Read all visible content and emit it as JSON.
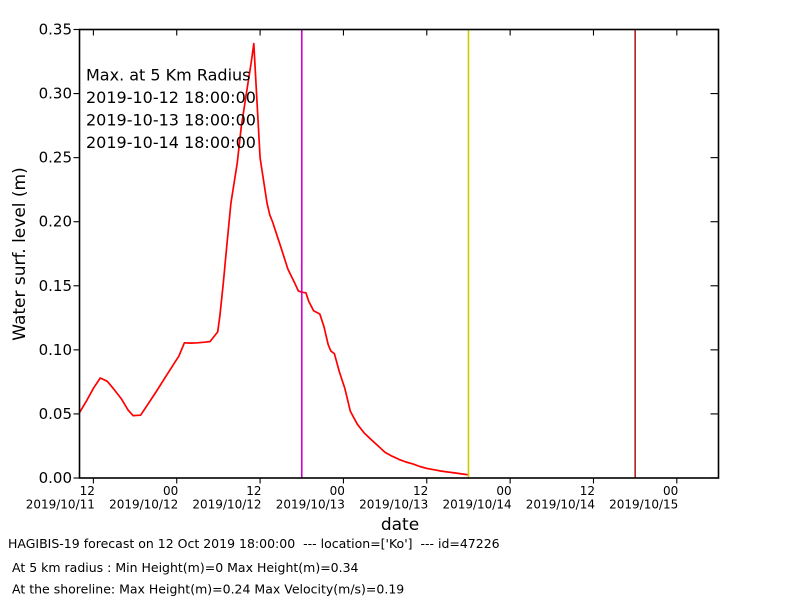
{
  "chart_data": {
    "type": "line",
    "title": "",
    "xlabel": "date",
    "ylabel": "Water surf. level (m)",
    "grid": false,
    "x_axis": {
      "unit": "hours since 2019-10-11 10:00",
      "range_hours": [
        0,
        92
      ],
      "ticks": [
        {
          "hours": 2,
          "time": "12",
          "date": "2019/10/11"
        },
        {
          "hours": 14,
          "time": "00",
          "date": "2019/10/12"
        },
        {
          "hours": 26,
          "time": "12",
          "date": "2019/10/12"
        },
        {
          "hours": 38,
          "time": "00",
          "date": "2019/10/13"
        },
        {
          "hours": 50,
          "time": "12",
          "date": "2019/10/13"
        },
        {
          "hours": 62,
          "time": "00",
          "date": "2019/10/14"
        },
        {
          "hours": 74,
          "time": "12",
          "date": "2019/10/14"
        },
        {
          "hours": 86,
          "time": "00",
          "date": "2019/10/15"
        }
      ]
    },
    "y_axis": {
      "range": [
        0,
        0.35
      ],
      "ticks": [
        0,
        0.05,
        0.1,
        0.15,
        0.2,
        0.25,
        0.3,
        0.35
      ],
      "decimals": 2
    },
    "series": [
      {
        "name": "water surface level, max at 5 km radius",
        "color": "#ff0000",
        "points": [
          [
            0,
            0.051
          ],
          [
            1,
            0.06
          ],
          [
            2,
            0.07
          ],
          [
            3,
            0.078
          ],
          [
            4,
            0.0755
          ],
          [
            5,
            0.069
          ],
          [
            6,
            0.062
          ],
          [
            7,
            0.053
          ],
          [
            7.7,
            0.0487
          ],
          [
            8.8,
            0.049
          ],
          [
            9.6,
            0.0556
          ],
          [
            11,
            0.067
          ],
          [
            12.4,
            0.079
          ],
          [
            13.8,
            0.091
          ],
          [
            14.3,
            0.095
          ],
          [
            15.1,
            0.1055
          ],
          [
            16,
            0.1053
          ],
          [
            17,
            0.1055
          ],
          [
            18,
            0.106
          ],
          [
            18.8,
            0.1065
          ],
          [
            19.9,
            0.114
          ],
          [
            20.2,
            0.126
          ],
          [
            20.7,
            0.152
          ],
          [
            21.2,
            0.1805
          ],
          [
            21.8,
            0.2144
          ],
          [
            22.7,
            0.2456
          ],
          [
            23.3,
            0.2742
          ],
          [
            24.1,
            0.3028
          ],
          [
            24.7,
            0.3236
          ],
          [
            25.1,
            0.339
          ],
          [
            26,
            0.2497
          ],
          [
            27,
            0.2146
          ],
          [
            27.4,
            0.2053
          ],
          [
            27.8,
            0.1998
          ],
          [
            29,
            0.18
          ],
          [
            30,
            0.163
          ],
          [
            31,
            0.152
          ],
          [
            31.5,
            0.146
          ],
          [
            32,
            0.145
          ],
          [
            32.6,
            0.1445
          ],
          [
            33,
            0.138
          ],
          [
            33.7,
            0.1305
          ],
          [
            34.6,
            0.128
          ],
          [
            35.2,
            0.118
          ],
          [
            35.8,
            0.104
          ],
          [
            36.2,
            0.099
          ],
          [
            36.7,
            0.097
          ],
          [
            37.4,
            0.083
          ],
          [
            38.2,
            0.07
          ],
          [
            39,
            0.052
          ],
          [
            40,
            0.042
          ],
          [
            41,
            0.035
          ],
          [
            42,
            0.03
          ],
          [
            43,
            0.025
          ],
          [
            44,
            0.02
          ],
          [
            45,
            0.017
          ],
          [
            46,
            0.0145
          ],
          [
            47,
            0.0125
          ],
          [
            48,
            0.011
          ],
          [
            49,
            0.009
          ],
          [
            50,
            0.0075
          ],
          [
            51,
            0.0065
          ],
          [
            52,
            0.0055
          ],
          [
            53,
            0.0047
          ],
          [
            54,
            0.004
          ],
          [
            55,
            0.0032
          ],
          [
            56,
            0.0025
          ]
        ]
      }
    ],
    "vlines": [
      {
        "hours": 32,
        "color": "#cc00cc",
        "label": "2019-10-12 18:00:00"
      },
      {
        "hours": 56,
        "color": "#cccc00",
        "label": "2019-10-13 18:00:00"
      },
      {
        "hours": 80,
        "color": "#b22222",
        "label": "2019-10-14 18:00:00"
      }
    ],
    "annotation": {
      "title": "Max. at 5 Km Radius",
      "title_color": "#ff0000"
    },
    "legend_position": "upper-left-inside"
  },
  "footer": [
    "HAGIBIS-19 forecast on 12 Oct 2019 18:00:00  --- location=['Ko']  --- id=47226",
    "At 5 km radius : Min Height(m)=0 Max Height(m)=0.34",
    "At the shoreline: Max Height(m)=0.24 Max Velocity(m/s)=0.19"
  ]
}
